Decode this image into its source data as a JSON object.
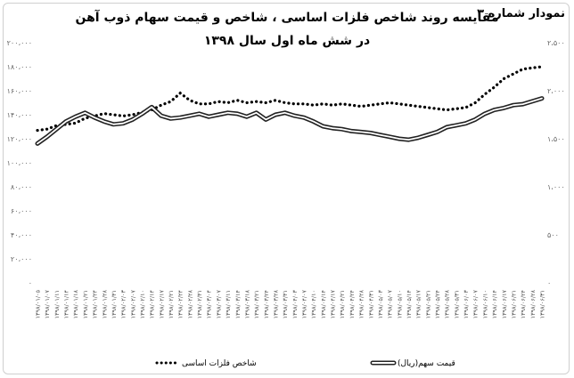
{
  "header": {
    "chart_number": "نمودار شماره ۳",
    "title_line1": "مقایسه روند شاخص فلزات اساسی ، شاخص و قیمت سهام ذوب آهن",
    "title_line2": "در شش ماه اول سال ۱۳۹۸"
  },
  "colors": {
    "index_series": "#000000",
    "price_outline": "#222222",
    "price_inner": "#ffffff",
    "tick_text": "#666666"
  },
  "chart_data": {
    "type": "line",
    "title": "مقایسه روند شاخص فلزات اساسی ، شاخص و قیمت سهام ذوب آهن — در شش ماه اول سال ۱۳۹۸",
    "x": [
      "۱۳۹۸/۰۱/۰۵",
      "۱۳۹۸/۰۱/۰۷",
      "۱۳۹۸/۰۱/۱۱",
      "۱۳۹۸/۰۱/۱۴",
      "۱۳۹۸/۰۱/۱۸",
      "۱۳۹۸/۰۱/۲۱",
      "۱۳۹۸/۰۱/۲۴",
      "۱۳۹۸/۰۱/۲۸",
      "۱۳۹۸/۰۱/۳۱",
      "۱۳۹۸/۰۲/۰۳",
      "۱۳۹۸/۰۲/۰۷",
      "۱۳۹۸/۰۲/۱۰",
      "۱۳۹۸/۰۲/۱۴",
      "۱۳۹۸/۰۲/۱۷",
      "۱۳۹۸/۰۲/۲۱",
      "۱۳۹۸/۰۲/۲۴",
      "۱۳۹۸/۰۲/۲۸",
      "۱۳۹۸/۰۲/۳۱",
      "۱۳۹۸/۰۳/۰۴",
      "۱۳۹۸/۰۳/۰۷",
      "۱۳۹۸/۰۳/۱۱",
      "۱۳۹۸/۰۳/۱۴",
      "۱۳۹۸/۰۳/۱۸",
      "۱۳۹۸/۰۳/۲۱",
      "۱۳۹۸/۰۳/۲۴",
      "۱۳۹۸/۰۳/۲۸",
      "۱۳۹۸/۰۳/۳۱",
      "۱۳۹۸/۰۴/۰۳",
      "۱۳۹۸/۰۴/۰۷",
      "۱۳۹۸/۰۴/۱۰",
      "۱۳۹۸/۰۴/۱۴",
      "۱۳۹۸/۰۴/۱۷",
      "۱۳۹۸/۰۴/۲۱",
      "۱۳۹۸/۰۴/۲۴",
      "۱۳۹۸/۰۴/۲۸",
      "۱۳۹۸/۰۴/۳۱",
      "۱۳۹۸/۰۵/۰۳",
      "۱۳۹۸/۰۵/۰۷",
      "۱۳۹۸/۰۵/۱۰",
      "۱۳۹۸/۰۵/۱۴",
      "۱۳۹۸/۰۵/۱۷",
      "۱۳۹۸/۰۵/۲۱",
      "۱۳۹۸/۰۵/۲۴",
      "۱۳۹۸/۰۵/۲۸",
      "۱۳۹۸/۰۵/۳۱",
      "۱۳۹۸/۰۶/۰۳",
      "۱۳۹۸/۰۶/۰۷",
      "۱۳۹۸/۰۶/۱۰",
      "۱۳۹۸/۰۶/۱۴",
      "۱۳۹۸/۰۶/۱۷",
      "۱۳۹۸/۰۶/۲۱",
      "۱۳۹۸/۰۶/۲۴",
      "۱۳۹۸/۰۶/۲۸",
      "۱۳۹۸/۰۶/۳۱"
    ],
    "y_left": {
      "ticks": [
        0,
        20000,
        40000,
        60000,
        80000,
        100000,
        120000,
        140000,
        160000,
        180000,
        200000
      ],
      "tick_labels": [
        "۰",
        "۲۰،۰۰۰",
        "۴۰،۰۰۰",
        "۶۰،۰۰۰",
        "۸۰،۰۰۰",
        "۱۰۰،۰۰۰",
        "۱۲۰،۰۰۰",
        "۱۴۰،۰۰۰",
        "۱۶۰،۰۰۰",
        "۱۸۰،۰۰۰",
        "۲۰۰،۰۰۰"
      ],
      "ylim": [
        0,
        200000
      ]
    },
    "y_right": {
      "ticks": [
        0,
        500,
        1000,
        1500,
        2000,
        2500
      ],
      "tick_labels": [
        "۰",
        "۵۰۰",
        "۱،۰۰۰",
        "۱،۵۰۰",
        "۲،۰۰۰",
        "۲،۵۰۰"
      ],
      "ylim": [
        0,
        2500
      ]
    },
    "series": [
      {
        "name": "شاخص فلزات اساسی",
        "axis": "left",
        "style": "dotted",
        "values": [
          127000,
          128000,
          131000,
          132000,
          133000,
          137000,
          139000,
          141000,
          140000,
          139000,
          140000,
          142000,
          144000,
          148000,
          151000,
          158000,
          152000,
          149000,
          149000,
          151000,
          150000,
          152000,
          150000,
          151000,
          150000,
          152000,
          150000,
          149000,
          149000,
          148000,
          149000,
          148000,
          149000,
          148000,
          147000,
          148000,
          149000,
          150000,
          149000,
          148000,
          147000,
          146000,
          145000,
          144000,
          145000,
          146000,
          150000,
          157000,
          163000,
          170000,
          174000,
          178000,
          179000,
          180000
        ]
      },
      {
        "name": "قیمت سهم(ریال)",
        "axis": "right",
        "style": "double-line",
        "values": [
          1450,
          1520,
          1600,
          1680,
          1730,
          1770,
          1720,
          1680,
          1650,
          1660,
          1700,
          1760,
          1830,
          1740,
          1710,
          1720,
          1740,
          1760,
          1730,
          1750,
          1770,
          1760,
          1730,
          1770,
          1700,
          1750,
          1770,
          1740,
          1720,
          1680,
          1630,
          1610,
          1600,
          1580,
          1570,
          1560,
          1540,
          1520,
          1500,
          1490,
          1510,
          1540,
          1570,
          1620,
          1640,
          1660,
          1700,
          1760,
          1800,
          1820,
          1850,
          1860,
          1890,
          1920
        ]
      }
    ],
    "legend_placement": "bottom",
    "grid": false
  }
}
